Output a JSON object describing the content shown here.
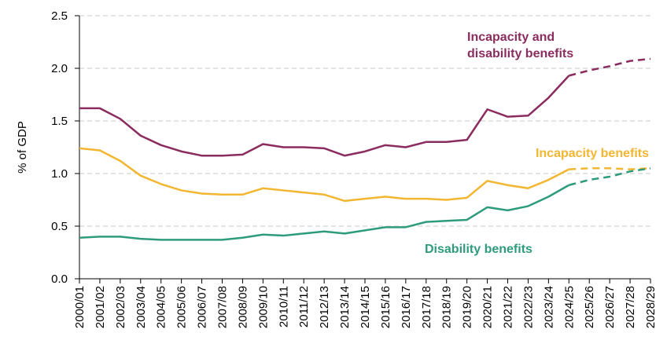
{
  "chart_data": {
    "type": "line",
    "title": "",
    "xlabel": "",
    "ylabel": "% of GDP",
    "ylim": [
      0,
      2.5
    ],
    "yticks": [
      "0.0",
      "0.5",
      "1.0",
      "1.5",
      "2.0",
      "2.5"
    ],
    "grid": "horizontal dashed",
    "categories": [
      "2000/01",
      "2001/02",
      "2002/03",
      "2003/04",
      "2004/05",
      "2005/06",
      "2006/07",
      "2007/08",
      "2008/09",
      "2009/10",
      "2010/11",
      "2011/12",
      "2012/13",
      "2013/14",
      "2014/15",
      "2015/16",
      "2016/17",
      "2017/18",
      "2018/19",
      "2019/20",
      "2020/21",
      "2021/22",
      "2022/23",
      "2023/24",
      "2024/25",
      "2025/26",
      "2026/27",
      "2027/28",
      "2028/29"
    ],
    "forecast_start": "2024/25",
    "series": [
      {
        "name": "Incapacity and disability benefits",
        "label_lines": [
          "Incapacity and",
          "disability benefits"
        ],
        "color": "#8B2C5F",
        "values": [
          1.62,
          1.62,
          1.52,
          1.36,
          1.27,
          1.21,
          1.17,
          1.17,
          1.18,
          1.28,
          1.25,
          1.25,
          1.24,
          1.17,
          1.21,
          1.27,
          1.25,
          1.3,
          1.3,
          1.32,
          1.61,
          1.54,
          1.55,
          1.72,
          1.93,
          1.98,
          2.02,
          2.07,
          2.09
        ]
      },
      {
        "name": "Incapacity benefits",
        "label_lines": [
          "Incapacity benefits"
        ],
        "color": "#F2B631",
        "values": [
          1.24,
          1.22,
          1.12,
          0.98,
          0.9,
          0.84,
          0.81,
          0.8,
          0.8,
          0.86,
          0.84,
          0.82,
          0.8,
          0.74,
          0.76,
          0.78,
          0.76,
          0.76,
          0.75,
          0.77,
          0.93,
          0.89,
          0.86,
          0.94,
          1.04,
          1.05,
          1.05,
          1.04,
          1.05
        ]
      },
      {
        "name": "Disability benefits",
        "label_lines": [
          "Disability benefits"
        ],
        "color": "#2E9C7C",
        "values": [
          0.39,
          0.4,
          0.4,
          0.38,
          0.37,
          0.37,
          0.37,
          0.37,
          0.39,
          0.42,
          0.41,
          0.43,
          0.45,
          0.43,
          0.46,
          0.49,
          0.49,
          0.54,
          0.55,
          0.56,
          0.68,
          0.65,
          0.69,
          0.78,
          0.89,
          0.94,
          0.97,
          1.02,
          1.05
        ]
      }
    ]
  }
}
